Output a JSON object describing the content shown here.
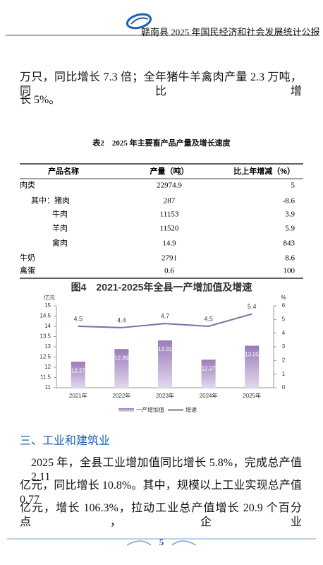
{
  "header": {
    "title": "赣南县 2025 年国民经济和社会发展统计公报"
  },
  "intro_lines": [
    "万只，同比增长 7.3 倍；全年猪牛羊禽肉产量 2.3 万吨，同比增",
    "长 5%。"
  ],
  "table": {
    "title": "表2　2025 年主要畜产品产量及增长速度",
    "columns": [
      "产品名称",
      "产量（吨）",
      "比上年增减（%）"
    ],
    "rows": [
      [
        "肉类",
        22974.9,
        5
      ],
      [
        "其中：猪肉",
        287,
        -8.6
      ],
      [
        "牛肉",
        11153,
        3.9
      ],
      [
        "羊肉",
        11520,
        5.9
      ],
      [
        "禽肉",
        14.9,
        843
      ],
      [
        "牛奶",
        2791,
        8.6
      ],
      [
        "禽蛋",
        0.6,
        100
      ]
    ]
  },
  "chart_data": {
    "type": "bar-line",
    "title": "图4　2021-2025年全县一产增加值及增速",
    "y_label": "亿元",
    "y2_label": "%",
    "categories": [
      "2021年",
      "2022年",
      "2023年",
      "2024年",
      "2025年"
    ],
    "series": [
      {
        "name": "一产增加值",
        "type": "bar",
        "color": "#9a7bb8",
        "values": [
          12.27,
          12.89,
          13.31,
          12.37,
          13.05
        ]
      },
      {
        "name": "增速",
        "type": "line",
        "axis": "y2",
        "color": "#7d6f9e",
        "values": [
          4.5,
          4.4,
          4.7,
          4.5,
          5.4
        ]
      }
    ],
    "ylim": [
      11,
      15
    ],
    "yticks": [
      11,
      11.5,
      12,
      12.5,
      13,
      13.5,
      14,
      14.5,
      15
    ],
    "y2lim": [
      0,
      6
    ],
    "y2ticks": [
      0,
      1,
      2,
      3,
      4,
      5,
      6
    ],
    "legend": "bottom"
  },
  "section": {
    "heading": "三、工业和建筑业",
    "lines": [
      "2025 年，全县工业增加值同比增长 5.8%，完成总产值 2.11",
      "亿元，同比增长 10.8%。其中，规模以上工业实现总产值 0.77",
      "亿元，增长 106.3%，拉动工业总产值增长 20.9 个百分点，企业"
    ]
  },
  "footer": {
    "page": "5"
  }
}
